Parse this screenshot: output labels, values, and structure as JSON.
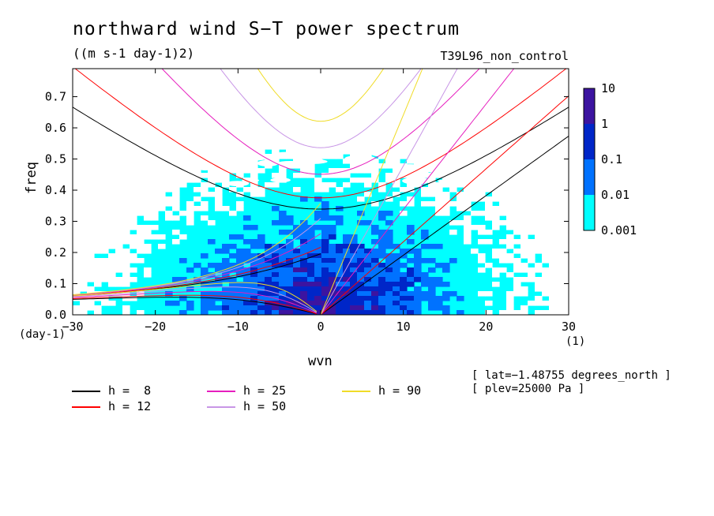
{
  "title": "northward wind S−T power spectrum",
  "subtitle": "((m s-1 day-1)2)",
  "run_label": "T39L96_non_control",
  "meta": [
    "[ lat=−1.48755 degrees_north ]",
    "[ plev=25000 Pa ]"
  ],
  "chart_data": {
    "type": "heatmap",
    "title": "northward wind S−T power spectrum",
    "subtitle": "((m s-1 day-1)2)",
    "xlabel": "wvn",
    "ylabel": "freq",
    "xunit": "(1)",
    "yunit": "(day-1)",
    "xlim": [
      -30,
      30
    ],
    "ylim": [
      0,
      0.79
    ],
    "xticks": [
      -30,
      -20,
      -10,
      0,
      10,
      20,
      30
    ],
    "xtick_labels": [
      "−30",
      "−20",
      "−10",
      "0",
      "10",
      "20",
      "30"
    ],
    "yticks": [
      0.0,
      0.1,
      0.2,
      0.3,
      0.4,
      0.5,
      0.6,
      0.7
    ],
    "ytick_labels": [
      "0.0",
      "0.1",
      "0.2",
      "0.3",
      "0.4",
      "0.5",
      "0.6",
      "0.7"
    ],
    "colorbar": {
      "levels": [
        "0.001",
        "0.01",
        "0.1",
        "1",
        "10"
      ],
      "colors": [
        "#00ffff",
        "#0072ff",
        "#0026c8",
        "#3c14a0"
      ],
      "scale": "log"
    },
    "field_colors": {
      "below": "#ffffff",
      "c1": "#00ffff",
      "c2": "#0072ff",
      "c3": "#0026c8",
      "c4": "#3c14a0"
    },
    "dispersion_curves": [
      {
        "name": "h =  8",
        "value": 8,
        "color": "#000000"
      },
      {
        "name": "h = 12",
        "value": 12,
        "color": "#ff0000"
      },
      {
        "name": "h = 25",
        "value": 25,
        "color": "#e61ebe"
      },
      {
        "name": "h = 50",
        "value": 50,
        "color": "#c896e6"
      },
      {
        "name": "h = 90",
        "value": 90,
        "color": "#f0dc28"
      }
    ],
    "grid": false,
    "legend_placement": "bottom-left"
  }
}
